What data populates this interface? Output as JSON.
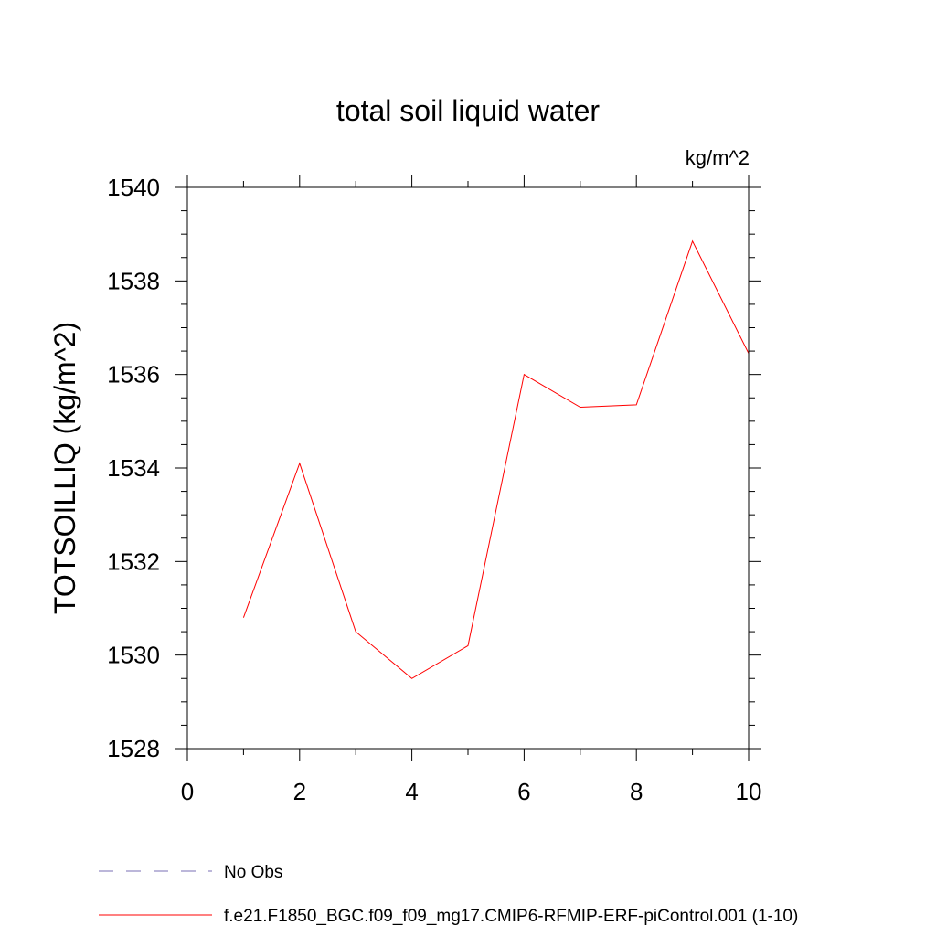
{
  "chart_data": {
    "type": "line",
    "title": "total soil liquid water",
    "units": "kg/m^2",
    "xlabel": "",
    "ylabel": "TOTSOILLIQ  (kg/m^2)",
    "xlim": [
      0,
      10
    ],
    "ylim": [
      1528,
      1540
    ],
    "x_major_ticks": [
      0,
      2,
      4,
      6,
      8,
      10
    ],
    "x_minor_step": 1,
    "y_major_ticks": [
      1528,
      1530,
      1532,
      1534,
      1536,
      1538,
      1540
    ],
    "y_minor_step": 0.5,
    "x_tick_labels": [
      "0",
      "2",
      "4",
      "6",
      "8",
      "10"
    ],
    "y_tick_labels": [
      "1528",
      "1530",
      "1532",
      "1534",
      "1536",
      "1538",
      "1540"
    ],
    "grid": false,
    "series": [
      {
        "name": "f.e21.F1850_BGC.f09_f09_mg17.CMIP6-RFMIP-ERF-piControl.001 (1-10)",
        "color": "#ff0000",
        "dash": "solid",
        "x": [
          1,
          2,
          3,
          4,
          5,
          6,
          7,
          8,
          9,
          10
        ],
        "values": [
          1530.8,
          1534.1,
          1530.5,
          1529.5,
          1530.2,
          1536.0,
          1535.3,
          1535.35,
          1538.85,
          1536.45
        ]
      }
    ],
    "legend": [
      {
        "label": "No Obs",
        "color": "#7a6fb5",
        "dash": "dashed"
      },
      {
        "label": "f.e21.F1850_BGC.f09_f09_mg17.CMIP6-RFMIP-ERF-piControl.001 (1-10)",
        "color": "#ff0000",
        "dash": "solid"
      }
    ],
    "legend_position": "bottom-left"
  }
}
